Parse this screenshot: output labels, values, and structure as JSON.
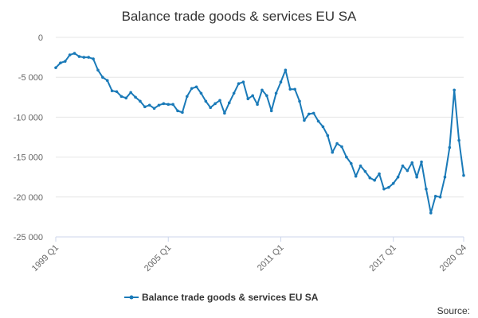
{
  "colors": {
    "series": "#1a7ab8",
    "grid": "#e6e6e6",
    "text": "#333333",
    "axis_text": "#666666"
  },
  "source_label": "Source:",
  "chart_data": {
    "type": "line",
    "title": "Balance trade goods & services EU SA",
    "xlabel": "",
    "ylabel": "",
    "ylim": [
      -25000,
      0
    ],
    "yticks": [
      0,
      -5000,
      -10000,
      -15000,
      -20000,
      -25000
    ],
    "ytick_labels": [
      "0",
      "-5 000",
      "-10 000",
      "-15 000",
      "-20 000",
      "-25 000"
    ],
    "xtick_labels": [
      {
        "label": "1999 Q1",
        "index": 0
      },
      {
        "label": "2005 Q1",
        "index": 24
      },
      {
        "label": "2011 Q1",
        "index": 48
      },
      {
        "label": "2017 Q1",
        "index": 72
      },
      {
        "label": "2020 Q4",
        "index": 87
      }
    ],
    "grid": true,
    "legend_position": "bottom-center",
    "series": [
      {
        "name": "Balance trade goods & services EU SA",
        "values": [
          -3800,
          -3200,
          -3000,
          -2200,
          -2000,
          -2400,
          -2500,
          -2500,
          -2700,
          -4100,
          -5000,
          -5400,
          -6700,
          -6800,
          -7400,
          -7600,
          -6900,
          -7500,
          -8000,
          -8700,
          -8500,
          -8900,
          -8500,
          -8300,
          -8400,
          -8400,
          -9200,
          -9400,
          -7400,
          -6400,
          -6200,
          -7000,
          -8000,
          -8800,
          -8300,
          -7900,
          -9500,
          -8200,
          -7000,
          -5800,
          -5600,
          -7700,
          -7300,
          -8400,
          -6600,
          -7300,
          -9200,
          -7000,
          -5600,
          -4100,
          -6500,
          -6500,
          -8000,
          -10400,
          -9600,
          -9500,
          -10500,
          -11200,
          -12300,
          -14400,
          -13300,
          -13700,
          -15000,
          -15800,
          -17400,
          -16100,
          -16800,
          -17600,
          -17900,
          -17100,
          -19000,
          -18800,
          -18300,
          -17500,
          -16100,
          -16700,
          -15700,
          -17500,
          -15600,
          -19000,
          -22000,
          -19900,
          -20000,
          -17500,
          -13800,
          -6600,
          -12900,
          -17300
        ]
      }
    ]
  }
}
